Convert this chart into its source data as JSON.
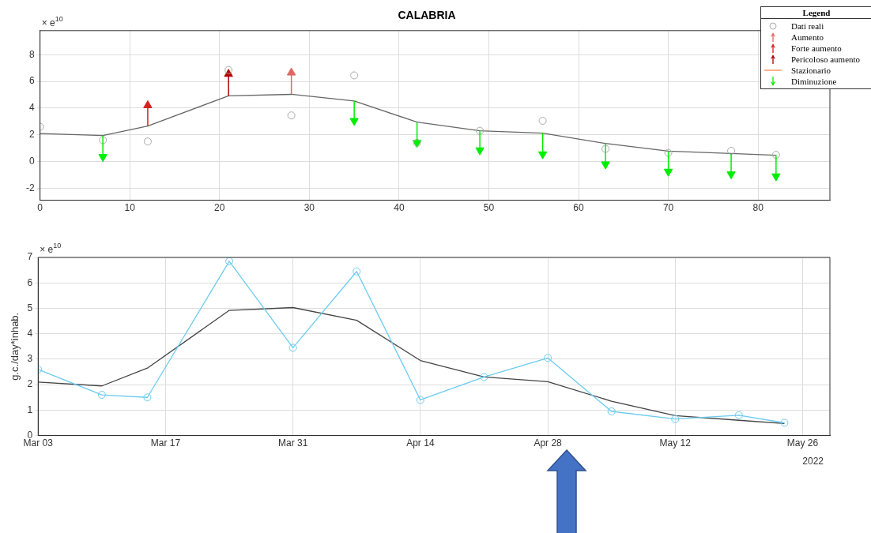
{
  "chart_data": [
    {
      "type": "line",
      "title": "CALABRIA",
      "legend_title": "Legend",
      "legend": "top right",
      "grid": true,
      "annotations": [
        "× e$^{10}$"
      ],
      "xlim": [
        0,
        88
      ],
      "xticks": [
        0,
        10,
        20,
        30,
        40,
        50,
        60,
        70,
        80
      ],
      "ylim": [
        -2.9,
        9.8
      ],
      "yticks": [
        -2,
        0,
        2,
        4,
        6,
        8
      ],
      "series": [
        {
          "name": "Dati reali",
          "type": "scatter",
          "marker": "circle",
          "color": "#aaaaaa",
          "x": [
            0,
            7,
            12,
            21,
            28,
            35,
            42,
            49,
            56,
            63,
            70,
            77,
            82
          ],
          "values": [
            2.6,
            1.6,
            1.5,
            6.85,
            3.45,
            6.45,
            1.4,
            2.3,
            3.05,
            0.95,
            0.65,
            0.8,
            0.5
          ]
        },
        {
          "type": "line",
          "marker": "none",
          "color": "#666666",
          "x": [
            0,
            7,
            12,
            21,
            28,
            35,
            42,
            49,
            56,
            63,
            70,
            77,
            82
          ],
          "values": [
            2.1,
            1.95,
            2.65,
            4.92,
            5.03,
            4.53,
            2.95,
            2.3,
            2.12,
            1.35,
            0.78,
            0.6,
            0.47
          ]
        },
        {
          "name": "Aumento",
          "type": "scatter",
          "marker": "triangle",
          "color": "#e06666",
          "x": [
            28
          ],
          "values": [
            6.65
          ],
          "errors": [
            [
              5.03,
              6.65
            ]
          ]
        },
        {
          "name": "Forte aumento",
          "type": "scatter",
          "marker": "triangle",
          "color": "#d62020",
          "x": [
            12
          ],
          "values": [
            4.2
          ],
          "errors": [
            [
              2.65,
              4.2
            ]
          ]
        },
        {
          "name": "Pericoloso aumento",
          "type": "scatter",
          "marker": "triangle",
          "color": "#b00000",
          "x": [
            21
          ],
          "values": [
            6.55
          ],
          "errors": [
            [
              4.92,
              6.55
            ]
          ]
        },
        {
          "name": "Stazionario",
          "type": "line",
          "marker": "none",
          "color": "#ff9966"
        },
        {
          "name": "Diminuzione",
          "type": "scatter",
          "marker": "triangle",
          "color": "#00ee00",
          "x": [
            7,
            35,
            42,
            49,
            56,
            63,
            70,
            77,
            82
          ],
          "values": [
            0.35,
            3.05,
            1.4,
            0.85,
            0.55,
            -0.2,
            -0.75,
            -0.95,
            -1.1
          ],
          "errors": [
            [
              0.35,
              1.95
            ],
            [
              3.05,
              4.53
            ],
            [
              1.4,
              2.95
            ],
            [
              0.85,
              2.3
            ],
            [
              0.55,
              2.12
            ],
            [
              -0.2,
              1.35
            ],
            [
              -0.75,
              0.78
            ],
            [
              -0.95,
              0.6
            ],
            [
              -1.1,
              0.47
            ]
          ]
        }
      ]
    },
    {
      "type": "line",
      "ylabel": "g.c./day*inhab.",
      "grid": true,
      "annotations": [
        "× e$^{10}$",
        "2022"
      ],
      "xlim": [
        "2022-03-03",
        "2022-05-29"
      ],
      "xticks": [
        {
          "value": "2022-03-03",
          "label": "Mar 03"
        },
        {
          "value": "2022-03-17",
          "label": "Mar 17"
        },
        {
          "value": "2022-03-31",
          "label": "Mar 31"
        },
        {
          "value": "2022-04-14",
          "label": "Apr 14"
        },
        {
          "value": "2022-04-28",
          "label": "Apr 28"
        },
        {
          "value": "2022-05-12",
          "label": "May 12"
        },
        {
          "value": "2022-05-26",
          "label": "May 26"
        }
      ],
      "ylim": [
        0,
        7
      ],
      "yticks": [
        0,
        1,
        2,
        3,
        4,
        5,
        6,
        7
      ],
      "x": [
        "2022-03-03",
        "2022-03-10",
        "2022-03-15",
        "2022-03-24",
        "2022-03-31",
        "2022-04-07",
        "2022-04-14",
        "2022-04-21",
        "2022-04-28",
        "2022-05-05",
        "2022-05-12",
        "2022-05-19",
        "2022-05-24"
      ],
      "series": [
        {
          "type": "line",
          "marker": "circle",
          "color": "#6ccbf0",
          "values": [
            2.6,
            1.6,
            1.5,
            6.85,
            3.45,
            6.45,
            1.4,
            2.3,
            3.05,
            0.95,
            0.65,
            0.8,
            0.5
          ]
        },
        {
          "type": "line",
          "marker": "none",
          "color": "#444444",
          "values": [
            2.1,
            1.95,
            2.65,
            4.92,
            5.03,
            4.53,
            2.95,
            2.3,
            2.12,
            1.35,
            0.78,
            0.6,
            0.47
          ]
        }
      ]
    }
  ]
}
